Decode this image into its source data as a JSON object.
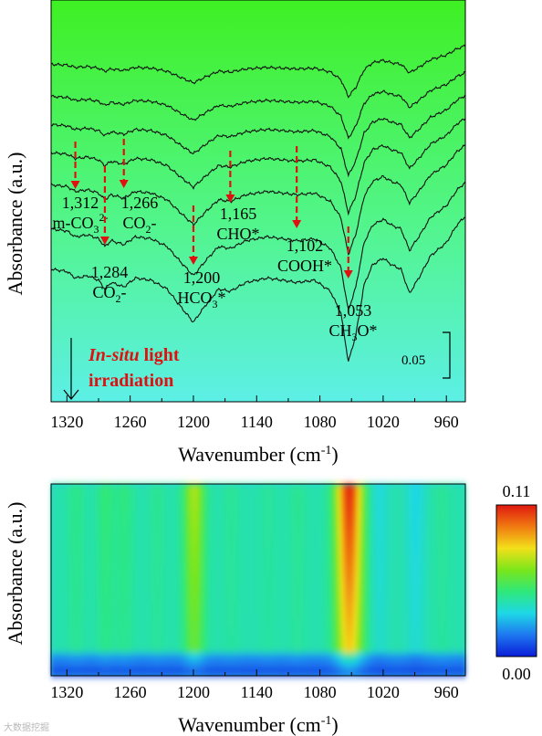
{
  "chart_data": [
    {
      "type": "line",
      "ylabel": "Absorbance (a.u.)",
      "xlabel_main": "Wavenumber (cm",
      "xlabel_sup": "-1",
      "xlabel_close": ")",
      "x_reversed": true,
      "xlim": [
        1335,
        942
      ],
      "xticks": [
        "1320",
        "1260",
        "1200",
        "1140",
        "1080",
        "1020",
        "960"
      ],
      "xtick_values": [
        1320,
        1260,
        1200,
        1140,
        1080,
        1020,
        960
      ],
      "background_gradient": [
        "#3ff023",
        "#52f58a",
        "#5cefe6"
      ],
      "series_count": 7,
      "series_baseline": [
        0.84,
        0.76,
        0.69,
        0.62,
        0.54,
        0.43,
        0.33
      ],
      "spectrum_x": [
        1335,
        1320,
        1312,
        1300,
        1290,
        1284,
        1278,
        1266,
        1255,
        1240,
        1225,
        1212,
        1200,
        1188,
        1176,
        1165,
        1150,
        1130,
        1115,
        1102,
        1085,
        1070,
        1060,
        1053,
        1046,
        1038,
        1030,
        1020,
        1012,
        1003,
        995,
        985,
        975,
        960,
        950,
        942
      ],
      "spectrum_shape": [
        0.0,
        -0.01,
        -0.04,
        -0.03,
        -0.05,
        -0.09,
        -0.06,
        -0.08,
        -0.04,
        -0.05,
        -0.09,
        -0.17,
        -0.24,
        -0.16,
        -0.09,
        -0.1,
        -0.06,
        -0.04,
        -0.05,
        -0.06,
        -0.05,
        -0.1,
        -0.2,
        -0.42,
        -0.3,
        -0.07,
        0.02,
        0.05,
        0.02,
        0.0,
        -0.11,
        -0.03,
        0.06,
        0.12,
        0.2,
        0.24
      ],
      "series_growth": [
        0.35,
        0.45,
        0.55,
        0.65,
        0.75,
        0.88,
        1.0
      ],
      "scale_bar_label": "0.05",
      "arrow_label_italic": "In-situ",
      "arrow_label_line1_rest": " light",
      "arrow_label_line2": "irradiation",
      "annotations": [
        {
          "x": 1312,
          "value": "1,312",
          "species": "m-CO",
          "sub": "3",
          "sup": "2-"
        },
        {
          "x": 1284,
          "value": "1,284",
          "species": "CO",
          "sub": "2",
          "tail": "-"
        },
        {
          "x": 1266,
          "value": "1,266",
          "species": "CO",
          "sub": "2",
          "tail": "-"
        },
        {
          "x": 1200,
          "value": "1,200",
          "species": "HCO",
          "sub": "3",
          "tail": "*"
        },
        {
          "x": 1165,
          "value": "1,165",
          "species": "CHO*"
        },
        {
          "x": 1102,
          "value": "1,102",
          "species": "COOH*"
        },
        {
          "x": 1053,
          "value": "1,053",
          "species": "CH",
          "sub": "3",
          "tail": "O*"
        }
      ],
      "annotation_color": "#e01010"
    },
    {
      "type": "heatmap",
      "ylabel": "Absorbance (a.u.)",
      "xlabel_main": "Wavenumber (cm",
      "xlabel_sup": "-1",
      "xlabel_close": ")",
      "x_reversed": true,
      "xlim": [
        1335,
        942
      ],
      "xticks": [
        "1320",
        "1260",
        "1200",
        "1140",
        "1080",
        "1020",
        "960"
      ],
      "xtick_values": [
        1320,
        1260,
        1200,
        1140,
        1080,
        1020,
        960
      ],
      "colorbar_max": "0.11",
      "colorbar_min": "0.00",
      "colormap": [
        "#0a1cd8",
        "#1e78f0",
        "#1ed8e6",
        "#2ee87a",
        "#7ae61a",
        "#f2e01a",
        "#f07a10",
        "#e01810"
      ],
      "band_centers": [
        1312,
        1284,
        1266,
        1235,
        1200,
        1165,
        1130,
        1102,
        1053,
        1025,
        1005,
        990,
        965
      ],
      "band_intensity": [
        0.08,
        0.12,
        0.1,
        0.06,
        0.44,
        0.05,
        0.04,
        0.06,
        1.0,
        -0.1,
        0.0,
        -0.12,
        0.05
      ]
    }
  ],
  "watermark": "大数据挖掘"
}
